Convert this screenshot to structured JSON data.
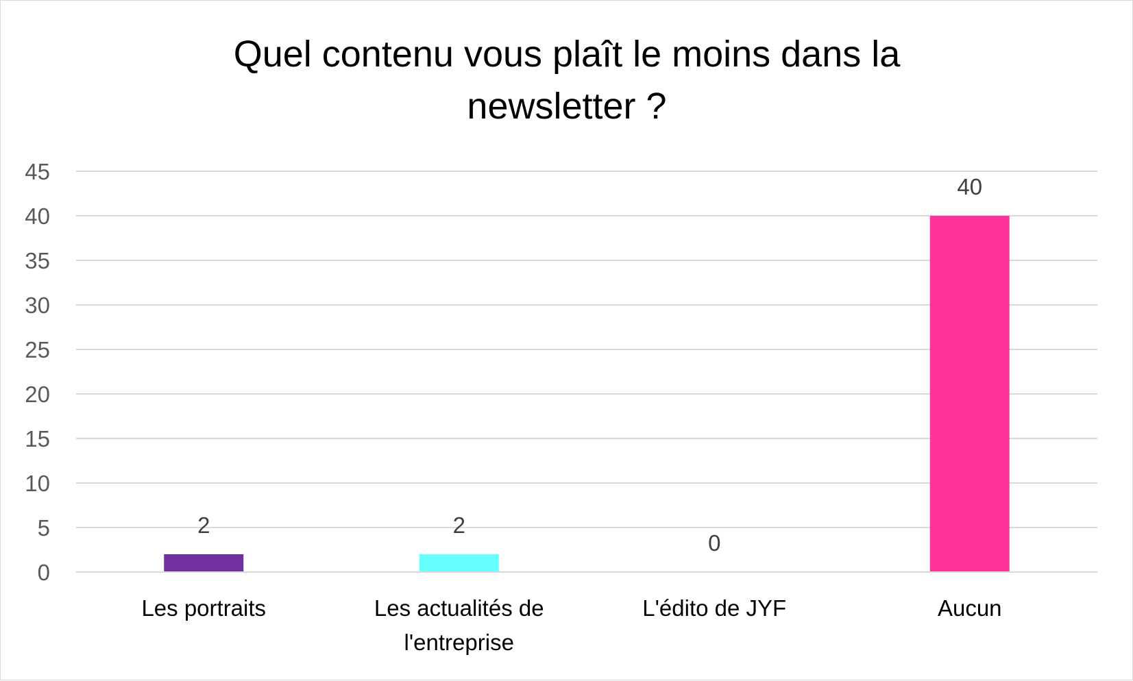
{
  "chart_data": {
    "type": "bar",
    "title": "Quel contenu vous plaît le moins dans la newsletter ?",
    "title_lines": [
      "Quel contenu vous plaît le moins dans la",
      "newsletter ?"
    ],
    "categories": [
      "Les portraits",
      "Les actualités de l'entreprise",
      "L'édito de JYF",
      "Aucun"
    ],
    "category_lines": [
      [
        "Les portraits"
      ],
      [
        "Les actualités de",
        "l'entreprise"
      ],
      [
        "L'édito de JYF"
      ],
      [
        "Aucun"
      ]
    ],
    "values": [
      2,
      2,
      0,
      40
    ],
    "data_labels": [
      "2",
      "2",
      "0",
      "40"
    ],
    "colors": [
      "#7030a0",
      "#66ffff",
      "#a5a5a5",
      "#ff3399"
    ],
    "ylim": [
      0,
      45
    ],
    "yticks": [
      0,
      5,
      10,
      15,
      20,
      25,
      30,
      35,
      40,
      45
    ],
    "ytick_labels": [
      "0",
      "5",
      "10",
      "15",
      "20",
      "25",
      "30",
      "35",
      "40",
      "45"
    ],
    "xlabel": "",
    "ylabel": "",
    "grid": true,
    "legend": false
  }
}
